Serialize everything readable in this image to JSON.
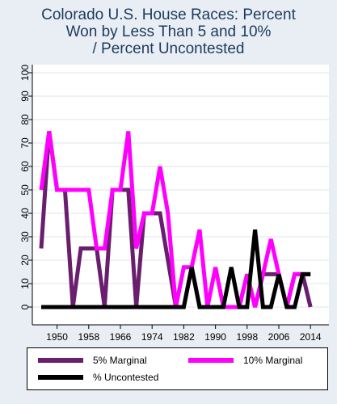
{
  "chart_data": {
    "type": "line",
    "title_lines": [
      "Colorado U.S. House Races: Percent",
      "Won by Less Than 5 and 10%",
      "/ Percent Uncontested"
    ],
    "xlabel": "",
    "ylabel": "",
    "x_ticks": [
      1950,
      1958,
      1966,
      1974,
      1982,
      1990,
      1998,
      2006,
      2014
    ],
    "y_ticks": [
      0,
      10,
      20,
      30,
      40,
      50,
      60,
      70,
      80,
      90,
      100
    ],
    "xlim": [
      1946,
      2016
    ],
    "ylim": [
      0,
      100
    ],
    "grid": true,
    "legend_position": "bottom",
    "x": [
      1946,
      1948,
      1950,
      1952,
      1954,
      1956,
      1958,
      1960,
      1962,
      1964,
      1966,
      1968,
      1970,
      1972,
      1974,
      1976,
      1978,
      1980,
      1982,
      1984,
      1986,
      1988,
      1990,
      1992,
      1994,
      1996,
      1998,
      2000,
      2002,
      2004,
      2006,
      2008,
      2010,
      2012,
      2014
    ],
    "series": [
      {
        "name": "5% Marginal",
        "color": "#6a1f6e",
        "values": [
          25,
          75,
          50,
          50,
          0,
          25,
          25,
          25,
          0,
          50,
          50,
          50,
          0,
          40,
          40,
          40,
          20,
          0,
          0,
          17,
          0,
          0,
          0,
          0,
          0,
          0,
          14,
          0,
          14,
          14,
          14,
          0,
          14,
          14,
          0
        ]
      },
      {
        "name": "10% Marginal",
        "color": "#ff00ff",
        "values": [
          50,
          75,
          50,
          50,
          50,
          50,
          50,
          25,
          25,
          50,
          50,
          75,
          25,
          40,
          40,
          60,
          40,
          0,
          17,
          17,
          33,
          0,
          17,
          0,
          0,
          0,
          14,
          0,
          14,
          29,
          14,
          0,
          14,
          14,
          14
        ]
      },
      {
        "name": "% Uncontested",
        "color": "#000000",
        "values": [
          0,
          0,
          0,
          0,
          0,
          0,
          0,
          0,
          0,
          0,
          0,
          0,
          0,
          0,
          0,
          0,
          0,
          0,
          0,
          17,
          0,
          0,
          0,
          0,
          17,
          0,
          0,
          33,
          0,
          0,
          14,
          0,
          0,
          14,
          14
        ]
      }
    ]
  }
}
